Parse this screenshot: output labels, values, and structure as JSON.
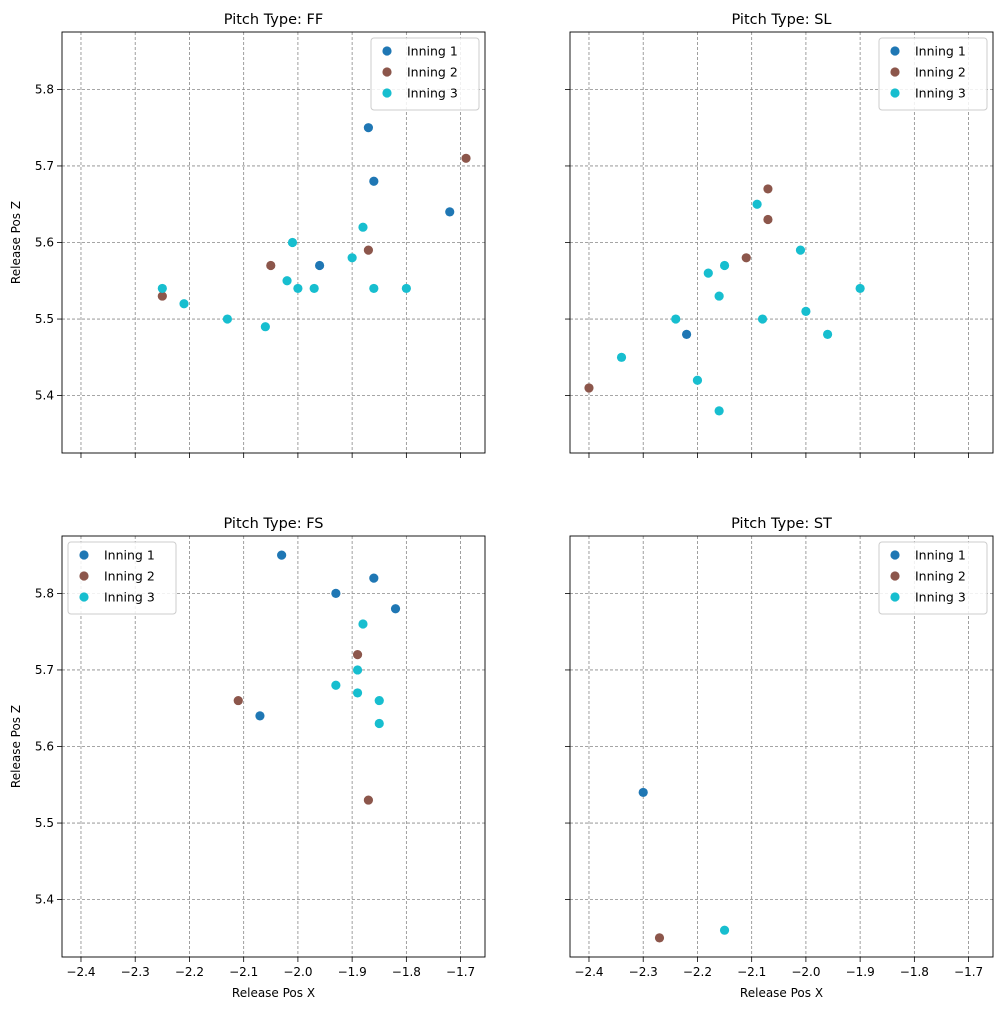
{
  "figure": {
    "background": "#ffffff",
    "grid_color": "#888888"
  },
  "series_styles": [
    {
      "name": "Inning 1",
      "color": "#1f77b4"
    },
    {
      "name": "Inning 2",
      "color": "#8c564b"
    },
    {
      "name": "Inning 3",
      "color": "#17becf"
    }
  ],
  "chart_data": [
    {
      "type": "scatter",
      "title": "Pitch Type: FF",
      "xlabel": "",
      "ylabel": "Release Pos Z",
      "xlim": [
        -2.435,
        -1.655
      ],
      "ylim": [
        5.325,
        5.875
      ],
      "xticks": [
        -2.4,
        -2.3,
        -2.2,
        -2.1,
        -2.0,
        -1.9,
        -1.8,
        -1.7
      ],
      "xtick_labels": [],
      "yticks": [
        5.4,
        5.5,
        5.6,
        5.7,
        5.8
      ],
      "ytick_labels": [
        "5.4",
        "5.5",
        "5.6",
        "5.7",
        "5.8"
      ],
      "grid": true,
      "legend": "top-right",
      "series": [
        {
          "name": "Inning 1",
          "color": "#1f77b4",
          "points": [
            [
              -1.87,
              5.75
            ],
            [
              -1.86,
              5.68
            ],
            [
              -1.72,
              5.64
            ],
            [
              -1.96,
              5.57
            ]
          ]
        },
        {
          "name": "Inning 2",
          "color": "#8c564b",
          "points": [
            [
              -1.69,
              5.71
            ],
            [
              -1.87,
              5.59
            ],
            [
              -2.05,
              5.57
            ],
            [
              -2.25,
              5.53
            ]
          ]
        },
        {
          "name": "Inning 3",
          "color": "#17becf",
          "points": [
            [
              -2.25,
              5.54
            ],
            [
              -2.21,
              5.52
            ],
            [
              -2.13,
              5.5
            ],
            [
              -2.06,
              5.49
            ],
            [
              -2.01,
              5.6
            ],
            [
              -2.02,
              5.55
            ],
            [
              -2.0,
              5.54
            ],
            [
              -1.97,
              5.54
            ],
            [
              -1.9,
              5.58
            ],
            [
              -1.88,
              5.62
            ],
            [
              -1.86,
              5.54
            ],
            [
              -1.8,
              5.54
            ]
          ]
        }
      ]
    },
    {
      "type": "scatter",
      "title": "Pitch Type: SL",
      "xlabel": "",
      "ylabel": "",
      "xlim": [
        -2.435,
        -1.655
      ],
      "ylim": [
        5.325,
        5.875
      ],
      "xticks": [
        -2.4,
        -2.3,
        -2.2,
        -2.1,
        -2.0,
        -1.9,
        -1.8,
        -1.7
      ],
      "xtick_labels": [],
      "yticks": [
        5.4,
        5.5,
        5.6,
        5.7,
        5.8
      ],
      "ytick_labels": [],
      "grid": true,
      "legend": "top-right",
      "series": [
        {
          "name": "Inning 1",
          "color": "#1f77b4",
          "points": [
            [
              -2.22,
              5.48
            ]
          ]
        },
        {
          "name": "Inning 2",
          "color": "#8c564b",
          "points": [
            [
              -2.4,
              5.41
            ],
            [
              -2.11,
              5.58
            ],
            [
              -2.07,
              5.67
            ],
            [
              -2.07,
              5.63
            ]
          ]
        },
        {
          "name": "Inning 3",
          "color": "#17becf",
          "points": [
            [
              -2.34,
              5.45
            ],
            [
              -2.24,
              5.5
            ],
            [
              -2.2,
              5.42
            ],
            [
              -2.18,
              5.56
            ],
            [
              -2.16,
              5.53
            ],
            [
              -2.15,
              5.57
            ],
            [
              -2.16,
              5.38
            ],
            [
              -2.09,
              5.65
            ],
            [
              -2.08,
              5.5
            ],
            [
              -2.01,
              5.59
            ],
            [
              -2.0,
              5.51
            ],
            [
              -1.96,
              5.48
            ],
            [
              -1.9,
              5.54
            ]
          ]
        }
      ]
    },
    {
      "type": "scatter",
      "title": "Pitch Type: FS",
      "xlabel": "Release Pos X",
      "ylabel": "Release Pos Z",
      "xlim": [
        -2.435,
        -1.655
      ],
      "ylim": [
        5.325,
        5.875
      ],
      "xticks": [
        -2.4,
        -2.3,
        -2.2,
        -2.1,
        -2.0,
        -1.9,
        -1.8,
        -1.7
      ],
      "xtick_labels": [
        "−2.4",
        "−2.3",
        "−2.2",
        "−2.1",
        "−2.0",
        "−1.9",
        "−1.8",
        "−1.7"
      ],
      "yticks": [
        5.4,
        5.5,
        5.6,
        5.7,
        5.8
      ],
      "ytick_labels": [
        "5.4",
        "5.5",
        "5.6",
        "5.7",
        "5.8"
      ],
      "grid": true,
      "legend": "top-left",
      "series": [
        {
          "name": "Inning 1",
          "color": "#1f77b4",
          "points": [
            [
              -2.03,
              5.85
            ],
            [
              -1.93,
              5.8
            ],
            [
              -1.86,
              5.82
            ],
            [
              -1.82,
              5.78
            ],
            [
              -2.07,
              5.64
            ]
          ]
        },
        {
          "name": "Inning 2",
          "color": "#8c564b",
          "points": [
            [
              -2.11,
              5.66
            ],
            [
              -1.89,
              5.72
            ],
            [
              -1.87,
              5.53
            ]
          ]
        },
        {
          "name": "Inning 3",
          "color": "#17becf",
          "points": [
            [
              -1.88,
              5.76
            ],
            [
              -1.89,
              5.7
            ],
            [
              -1.93,
              5.68
            ],
            [
              -1.89,
              5.67
            ],
            [
              -1.85,
              5.66
            ],
            [
              -1.85,
              5.63
            ]
          ]
        }
      ]
    },
    {
      "type": "scatter",
      "title": "Pitch Type: ST",
      "xlabel": "Release Pos X",
      "ylabel": "",
      "xlim": [
        -2.435,
        -1.655
      ],
      "ylim": [
        5.325,
        5.875
      ],
      "xticks": [
        -2.4,
        -2.3,
        -2.2,
        -2.1,
        -2.0,
        -1.9,
        -1.8,
        -1.7
      ],
      "xtick_labels": [
        "−2.4",
        "−2.3",
        "−2.2",
        "−2.1",
        "−2.0",
        "−1.9",
        "−1.8",
        "−1.7"
      ],
      "yticks": [
        5.4,
        5.5,
        5.6,
        5.7,
        5.8
      ],
      "ytick_labels": [],
      "grid": true,
      "legend": "top-right",
      "series": [
        {
          "name": "Inning 1",
          "color": "#1f77b4",
          "points": [
            [
              -2.3,
              5.54
            ]
          ]
        },
        {
          "name": "Inning 2",
          "color": "#8c564b",
          "points": [
            [
              -2.27,
              5.35
            ]
          ]
        },
        {
          "name": "Inning 3",
          "color": "#17becf",
          "points": [
            [
              -2.15,
              5.36
            ]
          ]
        }
      ]
    }
  ]
}
